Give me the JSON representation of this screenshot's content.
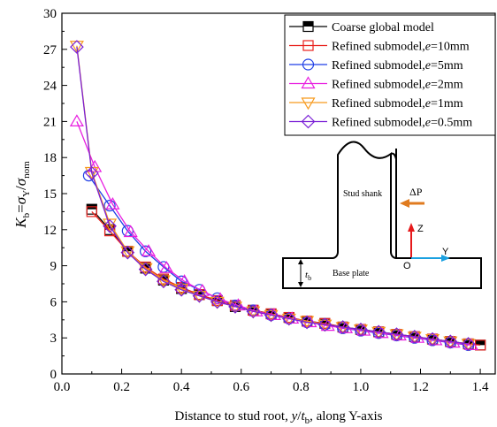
{
  "chart_data": {
    "type": "line",
    "title": "",
    "xlabel": {
      "main": "Distance to stud root, ",
      "var": "y",
      "slash": "/",
      "var2": "t",
      "sub": "b",
      "tail": ", along Y-axis"
    },
    "ylabel": {
      "k": "K",
      "ksub": "b",
      "eq": "=",
      "s1": "σ",
      "s1sub": "Y",
      "slash": "/",
      "s2": "σ",
      "s2sub": "nom"
    },
    "xlim": [
      0.0,
      1.45
    ],
    "ylim": [
      0,
      30
    ],
    "xticks": [
      "0.0",
      "0.2",
      "0.4",
      "0.6",
      "0.8",
      "1.0",
      "1.2",
      "1.4"
    ],
    "yticks": [
      "0",
      "3",
      "6",
      "9",
      "12",
      "15",
      "18",
      "21",
      "24",
      "27",
      "30"
    ],
    "legend_position": "top-right",
    "series": [
      {
        "name": "Coarse global model",
        "color": "#000000",
        "marker": "half-square",
        "x": [
          0.1,
          0.16,
          0.22,
          0.28,
          0.34,
          0.4,
          0.46,
          0.52,
          0.58,
          0.64,
          0.7,
          0.76,
          0.82,
          0.88,
          0.94,
          1.0,
          1.06,
          1.12,
          1.18,
          1.24,
          1.3,
          1.36,
          1.4
        ],
        "y": [
          13.7,
          12.0,
          10.2,
          8.8,
          7.8,
          7.1,
          6.6,
          6.1,
          5.6,
          5.3,
          5.0,
          4.7,
          4.4,
          4.2,
          3.9,
          3.7,
          3.5,
          3.3,
          3.1,
          2.9,
          2.7,
          2.5,
          2.4
        ]
      },
      {
        "name": "Refined submodel,e=10mm",
        "color": "#e8211d",
        "marker": "square",
        "x": [
          0.1,
          0.16,
          0.22,
          0.28,
          0.34,
          0.4,
          0.46,
          0.52,
          0.58,
          0.64,
          0.7,
          0.76,
          0.82,
          0.88,
          0.94,
          1.0,
          1.06,
          1.12,
          1.18,
          1.24,
          1.3,
          1.36,
          1.4
        ],
        "y": [
          13.5,
          11.9,
          10.2,
          8.9,
          7.9,
          7.2,
          6.6,
          6.1,
          5.7,
          5.3,
          5.0,
          4.7,
          4.4,
          4.2,
          3.9,
          3.7,
          3.5,
          3.3,
          3.1,
          2.9,
          2.7,
          2.5,
          2.4
        ]
      },
      {
        "name": "Refined submodel,e=5mm",
        "color": "#1f3fe6",
        "marker": "circle",
        "x": [
          0.09,
          0.16,
          0.22,
          0.28,
          0.34,
          0.4,
          0.46,
          0.52,
          0.58,
          0.64,
          0.7,
          0.76,
          0.82,
          0.88,
          0.94,
          1.0,
          1.06,
          1.12,
          1.18,
          1.24,
          1.3,
          1.36
        ],
        "y": [
          16.5,
          14.0,
          11.9,
          10.2,
          8.9,
          7.7,
          7.0,
          6.3,
          5.7,
          5.3,
          4.9,
          4.6,
          4.3,
          4.1,
          3.8,
          3.6,
          3.4,
          3.2,
          3.0,
          2.8,
          2.6,
          2.4
        ]
      },
      {
        "name": "Refined submodel,e=2mm",
        "color": "#e81ee0",
        "marker": "triangle-up",
        "x": [
          0.05,
          0.11,
          0.17,
          0.23,
          0.29,
          0.35,
          0.41,
          0.47,
          0.53,
          0.59,
          0.65,
          0.71,
          0.77,
          0.83,
          0.89,
          0.95,
          1.01,
          1.07,
          1.13,
          1.19,
          1.25,
          1.31,
          1.37
        ],
        "y": [
          21.0,
          17.2,
          14.1,
          11.8,
          10.2,
          8.8,
          7.7,
          6.9,
          6.2,
          5.7,
          5.2,
          4.9,
          4.6,
          4.3,
          4.0,
          3.8,
          3.6,
          3.4,
          3.2,
          3.0,
          2.8,
          2.6,
          2.4
        ]
      },
      {
        "name": "Refined submodel,e=1mm",
        "color": "#f79a1e",
        "marker": "triangle-down",
        "x": [
          0.05,
          0.1,
          0.16,
          0.22,
          0.28,
          0.34,
          0.4,
          0.46,
          0.52,
          0.58,
          0.64,
          0.7,
          0.76,
          0.82,
          0.88,
          0.94,
          1.0,
          1.06,
          1.12,
          1.18,
          1.24,
          1.3,
          1.36
        ],
        "y": [
          27.3,
          16.8,
          12.5,
          10.2,
          8.8,
          7.8,
          7.1,
          6.5,
          6.0,
          5.6,
          5.2,
          4.9,
          4.6,
          4.4,
          4.1,
          3.9,
          3.7,
          3.5,
          3.3,
          3.1,
          2.9,
          2.7,
          2.5
        ]
      },
      {
        "name": "Refined submodel,e=0.5mm",
        "color": "#7a1fd6",
        "marker": "diamond",
        "x": [
          0.05,
          0.1,
          0.16,
          0.22,
          0.28,
          0.34,
          0.4,
          0.46,
          0.52,
          0.58,
          0.64,
          0.7,
          0.76,
          0.82,
          0.88,
          0.94,
          1.0,
          1.06,
          1.12,
          1.18,
          1.24,
          1.3,
          1.36
        ],
        "y": [
          27.2,
          16.7,
          12.3,
          10.1,
          8.7,
          7.7,
          7.0,
          6.5,
          6.0,
          5.6,
          5.2,
          4.9,
          4.6,
          4.3,
          4.1,
          3.9,
          3.7,
          3.5,
          3.3,
          3.1,
          2.9,
          2.7,
          2.5
        ]
      }
    ],
    "inset": {
      "stud_label": "Stud shank",
      "force_label": "ΔP",
      "base_label": "Base plate",
      "z_label": "Z",
      "y_label": "Y",
      "o_label": "O",
      "tb_var": "t",
      "tb_sub": "b"
    }
  }
}
